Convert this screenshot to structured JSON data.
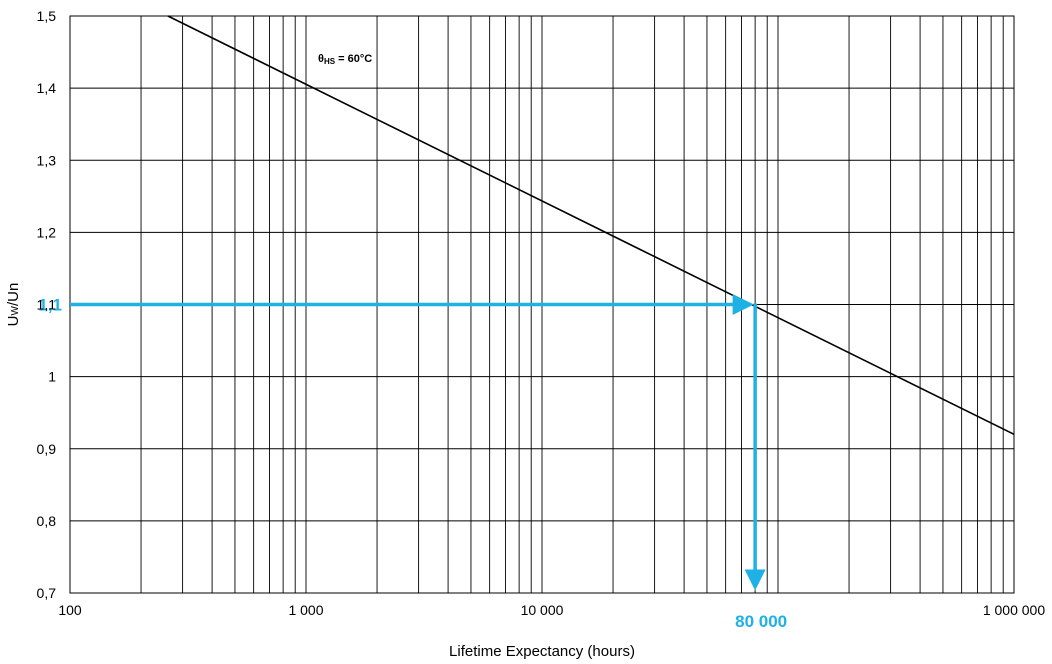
{
  "chart_data": {
    "type": "line",
    "title": "",
    "xlabel": "Lifetime Expectancy (hours)",
    "ylabel_main": "U",
    "ylabel_sub": "W",
    "ylabel_rest": "/Un",
    "x_scale": "log",
    "xlim": [
      100,
      1000000
    ],
    "ylim": [
      0.7,
      1.5
    ],
    "grid": true,
    "x_ticks": [
      {
        "value": 100,
        "label": "100"
      },
      {
        "value": 1000,
        "label": "1 000"
      },
      {
        "value": 10000,
        "label": "10 000"
      },
      {
        "value": 1000000,
        "label": "1 000 000"
      }
    ],
    "y_ticks": [
      {
        "value": 0.7,
        "label": "0,7"
      },
      {
        "value": 0.8,
        "label": "0,8"
      },
      {
        "value": 0.9,
        "label": "0,9"
      },
      {
        "value": 1.0,
        "label": "1"
      },
      {
        "value": 1.1,
        "label": "1,1"
      },
      {
        "value": 1.2,
        "label": "1,2"
      },
      {
        "value": 1.3,
        "label": "1,3"
      },
      {
        "value": 1.4,
        "label": "1,4"
      },
      {
        "value": 1.5,
        "label": "1,5"
      }
    ],
    "series": [
      {
        "x": [
          260,
          1000000
        ],
        "y": [
          1.5,
          0.92
        ],
        "color": "#000000"
      }
    ],
    "annotation": {
      "main": "θ",
      "sub": "HS",
      "rest": " = 60°C"
    },
    "callout": {
      "x": 80000,
      "y": 1.1,
      "x_label": "80 000",
      "y_label": "1,1",
      "color": "#1fb0e6"
    }
  }
}
